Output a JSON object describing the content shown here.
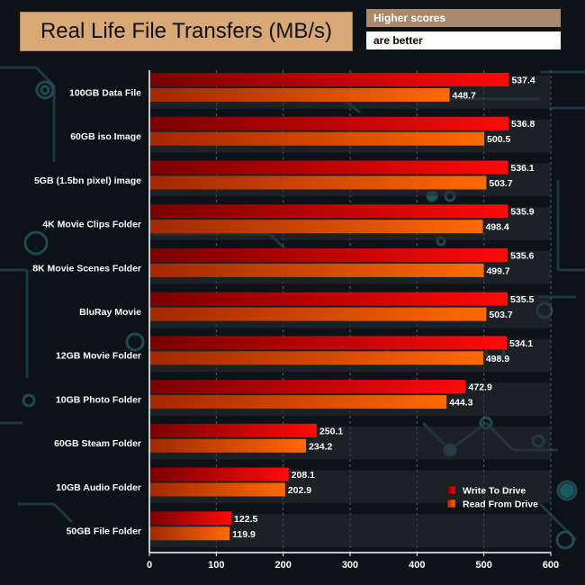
{
  "header": {
    "title": "Real Life File Transfers (MB/s)",
    "note_line1": "Higher scores",
    "note_line2": "are better"
  },
  "chart_data": {
    "type": "bar",
    "orientation": "horizontal",
    "title": "Real Life File Transfers (MB/s)",
    "categories": [
      "100GB Data File",
      "60GB iso Image",
      "5GB (1.5bn pixel) image",
      "4K Movie Clips Folder",
      "8K Movie Scenes Folder",
      "BluRay Movie",
      "12GB Movie Folder",
      "10GB Photo Folder",
      "60GB Steam Folder",
      "10GB Audio Folder",
      "50GB File Folder"
    ],
    "series": [
      {
        "name": "Write To  Drive",
        "color": "#e8000a",
        "values": [
          537.4,
          536.8,
          536.1,
          535.9,
          535.6,
          535.5,
          534.1,
          472.9,
          250.1,
          208.1,
          122.5
        ]
      },
      {
        "name": "Read From  Drive",
        "color": "#ff5a00",
        "values": [
          448.7,
          500.5,
          503.7,
          498.4,
          499.7,
          503.7,
          498.9,
          444.3,
          234.2,
          202.9,
          119.9
        ]
      }
    ],
    "xlim": [
      0,
      600
    ],
    "xticks": [
      0,
      100,
      200,
      300,
      400,
      500,
      600
    ],
    "legend_position": "bottom-right"
  }
}
